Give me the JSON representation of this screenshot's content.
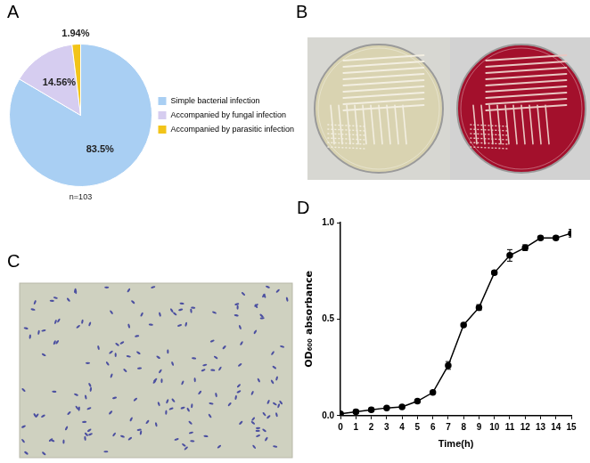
{
  "chart_data": [
    {
      "panel": "A",
      "type": "pie",
      "categories": [
        "Simple bacterial infection",
        "Accompanied by fungal infection",
        "Accompanied by parasitic infection"
      ],
      "values": [
        83.5,
        14.56,
        1.94
      ],
      "value_labels": [
        "83.5%",
        "14.56%",
        "1.94%"
      ],
      "colors": [
        "#a9cff3",
        "#d6cdf0",
        "#f2c419"
      ],
      "data_labels": true,
      "legend": "right",
      "annotation": "n=103"
    },
    {
      "panel": "D",
      "type": "line",
      "x": [
        0,
        1,
        2,
        3,
        4,
        5,
        6,
        7,
        8,
        9,
        10,
        11,
        12,
        13,
        14,
        15
      ],
      "values": [
        0.01,
        0.02,
        0.03,
        0.04,
        0.045,
        0.075,
        0.12,
        0.26,
        0.47,
        0.56,
        0.74,
        0.83,
        0.87,
        0.92,
        0.92,
        0.945
      ],
      "errors": [
        0.005,
        0.01,
        0.01,
        0.005,
        0.005,
        0.005,
        0.005,
        0.02,
        0.005,
        0.015,
        0.01,
        0.03,
        0.015,
        0.01,
        0.01,
        0.02
      ],
      "xlim": [
        0,
        15
      ],
      "xticks": [
        0,
        1,
        2,
        3,
        4,
        5,
        6,
        7,
        8,
        9,
        10,
        11,
        12,
        13,
        14,
        15
      ],
      "ylim": [
        0,
        1
      ],
      "yticks": [
        {
          "value": 0,
          "label": "0.0"
        },
        {
          "value": 0.5,
          "label": "0.5"
        },
        {
          "value": 1,
          "label": "1.0"
        }
      ],
      "x_label": "Time(h)",
      "y_label": "OD₆₀₀ absorbance",
      "color": "#000000",
      "marker": "circle",
      "grid": false
    }
  ],
  "images": [
    {
      "panel": "B"
    },
    {
      "panel": "C"
    }
  ]
}
